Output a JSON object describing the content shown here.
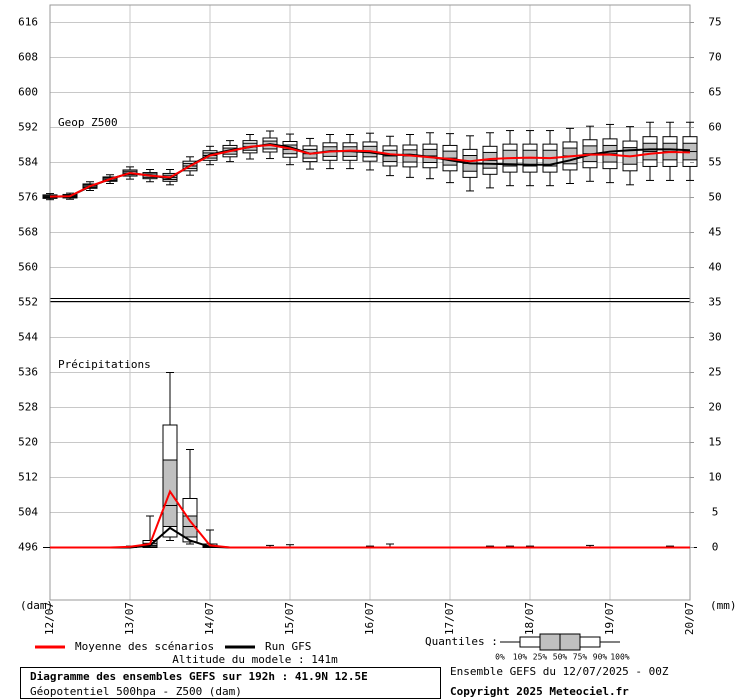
{
  "chart_data": {
    "type": "box",
    "geop_label": "Geop Z500",
    "precip_label": "Précipitations",
    "ylabel": "(dam)",
    "y2label": "(mm)",
    "quantiles_label": "Quantiles :",
    "altitude": "Altitude du modele : 141m",
    "title": "Diagramme des ensembles GEFS sur 192h : 41.9N 12.5E",
    "subtitle": "Géopotentiel 500hpa - Z500 (dam)",
    "run_info": "Ensemble GEFS du 12/07/2025 - 00Z",
    "copyright": "Copyright 2025 Meteociel.fr",
    "box_color": "#c0c0c0",
    "grid": true,
    "x": [
      0,
      6,
      12,
      18,
      24,
      30,
      36,
      42,
      48,
      54,
      60,
      66,
      72,
      78,
      84,
      90,
      96,
      102,
      108,
      114,
      120,
      126,
      132,
      138,
      144,
      150,
      156,
      162,
      168,
      174,
      180,
      186,
      192
    ],
    "xlim": [
      0,
      192
    ],
    "xticks": [
      {
        "value": 0,
        "label": "12/07"
      },
      {
        "value": 24,
        "label": "13/07"
      },
      {
        "value": 48,
        "label": "14/07"
      },
      {
        "value": 72,
        "label": "15/07"
      },
      {
        "value": 96,
        "label": "16/07"
      },
      {
        "value": 120,
        "label": "17/07"
      },
      {
        "value": 144,
        "label": "18/07"
      },
      {
        "value": 168,
        "label": "19/07"
      },
      {
        "value": 192,
        "label": "20/07"
      }
    ],
    "ylim": [
      484,
      620
    ],
    "yticks": [
      496,
      504,
      512,
      520,
      528,
      536,
      544,
      552,
      560,
      568,
      576,
      584,
      592,
      600,
      608,
      616
    ],
    "y2lim": [
      -7.5,
      77.5
    ],
    "y2ticks": [
      0,
      5,
      10,
      15,
      20,
      25,
      30,
      35,
      40,
      45,
      50,
      55,
      60,
      65,
      70,
      75
    ],
    "series": [
      {
        "name": "0%",
        "values": [
          575.5,
          575.6,
          577.6,
          579.2,
          580.2,
          579.6,
          578.9,
          581.1,
          583.5,
          584.2,
          584.8,
          584.9,
          583.5,
          582.5,
          582.6,
          582.6,
          582.3,
          581.0,
          580.6,
          580.3,
          579.4,
          577.5,
          578.2,
          578.7,
          578.7,
          578.7,
          579.2,
          579.7,
          579.4,
          578.9,
          579.9,
          579.9,
          579.9
        ],
        "y2values": [
          0,
          0,
          0,
          0,
          0,
          0,
          1.0,
          0.5,
          0,
          0,
          0,
          0,
          0,
          0,
          0,
          0,
          0,
          0,
          0,
          0,
          0,
          0,
          0,
          0,
          0,
          0,
          0,
          0,
          0,
          0,
          0,
          0,
          0
        ]
      },
      {
        "name": "10%",
        "values": [
          575.8,
          575.9,
          578.1,
          579.7,
          580.9,
          580.3,
          579.7,
          582.1,
          584.5,
          585.3,
          586.2,
          586.4,
          585.2,
          584.2,
          584.5,
          584.5,
          584.3,
          583.2,
          583.0,
          582.8,
          582.1,
          580.6,
          581.3,
          581.8,
          581.8,
          581.8,
          582.3,
          582.8,
          582.6,
          582.1,
          583.1,
          583.1,
          583.1
        ],
        "y2values": [
          0,
          0,
          0,
          0,
          0,
          0,
          1.5,
          0.8,
          0,
          0,
          0,
          0,
          0,
          0,
          0,
          0,
          0,
          0,
          0,
          0,
          0,
          0,
          0,
          0,
          0,
          0,
          0,
          0,
          0,
          0,
          0,
          0,
          0
        ]
      },
      {
        "name": "25%",
        "values": [
          576.0,
          576.1,
          578.3,
          579.9,
          581.2,
          580.6,
          580.1,
          582.6,
          585.0,
          585.9,
          586.8,
          587.1,
          586.0,
          585.0,
          585.4,
          585.4,
          585.3,
          584.2,
          584.1,
          584.0,
          583.4,
          582.0,
          582.7,
          583.2,
          583.2,
          583.2,
          583.7,
          584.2,
          584.1,
          583.6,
          584.6,
          584.6,
          584.6
        ],
        "y2values": [
          0,
          0,
          0,
          0,
          0,
          0.1,
          3.0,
          1.5,
          0,
          0,
          0,
          0,
          0,
          0,
          0,
          0,
          0,
          0,
          0,
          0,
          0,
          0,
          0,
          0,
          0,
          0,
          0,
          0,
          0,
          0,
          0,
          0,
          0
        ]
      },
      {
        "name": "50%",
        "values": [
          576.2,
          576.3,
          578.6,
          580.2,
          581.6,
          581.0,
          580.6,
          583.2,
          585.6,
          586.6,
          587.6,
          588.0,
          587.0,
          586.0,
          586.5,
          586.5,
          586.5,
          585.5,
          585.5,
          585.5,
          585.0,
          583.8,
          584.5,
          585.0,
          585.0,
          585.0,
          585.5,
          586.0,
          586.0,
          585.5,
          586.5,
          586.5,
          586.5
        ],
        "y2values": [
          0,
          0,
          0,
          0,
          0,
          0.3,
          6.0,
          3.0,
          0.1,
          0,
          0,
          0,
          0,
          0,
          0,
          0,
          0,
          0,
          0,
          0,
          0,
          0,
          0,
          0,
          0,
          0,
          0,
          0,
          0,
          0,
          0,
          0,
          0
        ]
      },
      {
        "name": "75%",
        "values": [
          576.4,
          576.5,
          578.9,
          580.5,
          582.0,
          581.4,
          581.1,
          583.8,
          586.2,
          587.3,
          588.4,
          588.9,
          588.0,
          587.0,
          587.6,
          587.6,
          587.7,
          586.8,
          586.9,
          587.0,
          586.6,
          585.6,
          586.3,
          586.8,
          586.8,
          586.8,
          587.3,
          587.8,
          587.9,
          587.4,
          588.4,
          588.4,
          588.4
        ],
        "y2values": [
          0,
          0,
          0,
          0,
          0,
          0.6,
          12.5,
          4.5,
          0.2,
          0,
          0,
          0,
          0,
          0,
          0,
          0,
          0,
          0,
          0,
          0,
          0,
          0,
          0,
          0,
          0,
          0,
          0,
          0,
          0,
          0,
          0,
          0,
          0
        ]
      },
      {
        "name": "90%",
        "values": [
          576.6,
          576.7,
          579.1,
          580.7,
          582.3,
          581.7,
          581.5,
          584.3,
          586.7,
          587.9,
          589.0,
          589.6,
          588.8,
          587.8,
          588.5,
          588.5,
          588.7,
          587.8,
          588.0,
          588.2,
          587.9,
          587.0,
          587.7,
          588.2,
          588.2,
          588.2,
          588.7,
          589.2,
          589.4,
          588.9,
          589.9,
          589.9,
          589.9
        ],
        "y2values": [
          0,
          0,
          0,
          0,
          0,
          1.0,
          17.5,
          7.0,
          0.5,
          0,
          0,
          0,
          0,
          0,
          0,
          0,
          0,
          0,
          0,
          0,
          0,
          0,
          0,
          0,
          0,
          0,
          0,
          0,
          0,
          0,
          0,
          0,
          0
        ]
      },
      {
        "name": "100%",
        "values": [
          576.9,
          577.0,
          579.6,
          581.2,
          583.0,
          582.4,
          582.4,
          585.3,
          587.7,
          589.0,
          590.4,
          591.2,
          590.5,
          589.5,
          590.4,
          590.4,
          590.7,
          590.0,
          590.4,
          590.8,
          590.6,
          590.1,
          590.8,
          591.3,
          591.3,
          591.3,
          591.8,
          592.3,
          592.7,
          592.2,
          593.2,
          593.2,
          593.2
        ],
        "y2values": [
          0,
          0,
          0,
          0,
          0.2,
          4.5,
          25,
          14,
          2.5,
          0,
          0,
          0.3,
          0.4,
          0,
          0,
          0,
          0.2,
          0.5,
          0,
          0,
          0,
          0,
          0.2,
          0.2,
          0.2,
          0,
          0,
          0.3,
          0,
          0,
          0,
          0.2,
          0
        ]
      },
      {
        "name": "Moyenne des scénarios",
        "color": "#ff0000",
        "values": [
          576.2,
          576.3,
          578.6,
          580.2,
          581.6,
          581.0,
          580.6,
          583.2,
          585.6,
          586.6,
          587.6,
          588.0,
          587.2,
          586.0,
          586.5,
          586.7,
          586.6,
          585.9,
          585.6,
          585.2,
          584.8,
          584.3,
          584.8,
          585.0,
          585.1,
          585.0,
          585.4,
          585.8,
          585.8,
          585.4,
          586.0,
          586.4,
          586.3
        ],
        "y2values": [
          0,
          0,
          0,
          0,
          0.1,
          0.5,
          8.0,
          3.8,
          0.3,
          0,
          0,
          0,
          0,
          0,
          0,
          0,
          0,
          0,
          0,
          0,
          0,
          0,
          0,
          0,
          0,
          0,
          0,
          0,
          0,
          0,
          0,
          0,
          0
        ]
      },
      {
        "name": "Run GFS",
        "color": "#000000",
        "values": [
          576.2,
          576.3,
          578.5,
          580.2,
          581.6,
          581.0,
          580.4,
          583.3,
          585.8,
          586.8,
          587.5,
          588.2,
          587.5,
          586.0,
          586.6,
          586.6,
          586.3,
          585.7,
          585.8,
          585.3,
          584.5,
          583.8,
          583.7,
          583.6,
          583.5,
          583.5,
          584.5,
          585.8,
          586.5,
          586.8,
          587.0,
          587.0,
          586.8
        ],
        "y2values": [
          0,
          0,
          0,
          0,
          0,
          0.3,
          2.8,
          1.0,
          0.1,
          0,
          0,
          0,
          0,
          0,
          0,
          0,
          0,
          0,
          0,
          0,
          0,
          0,
          0,
          0,
          0,
          0,
          0,
          0,
          0,
          0,
          0,
          0,
          0
        ]
      }
    ]
  }
}
